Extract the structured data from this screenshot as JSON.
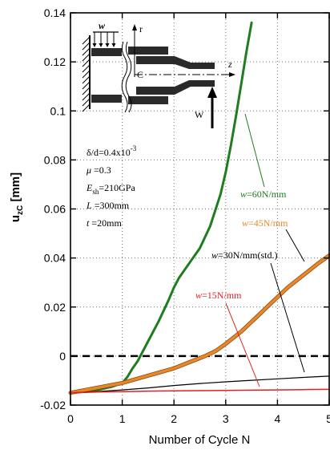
{
  "chart_data": {
    "type": "line",
    "xlabel": "Number of Cycle N",
    "ylabel_main": "u",
    "ylabel_sub": "zC",
    "ylabel_unit": " [mm]",
    "xlim": [
      0,
      5
    ],
    "ylim": [
      -0.02,
      0.14
    ],
    "x_ticks": [
      0,
      1,
      2,
      3,
      4,
      5
    ],
    "x_tick_labels": [
      "0",
      "1",
      "2",
      "3",
      "4",
      "5"
    ],
    "y_ticks": [
      -0.02,
      0,
      0.02,
      0.04,
      0.06,
      0.08,
      0.1,
      0.12,
      0.14
    ],
    "y_tick_labels": [
      "-0.02",
      "0",
      "0.02",
      "0.04",
      "0.06",
      "0.08",
      "0.1",
      "0.12",
      "0.14"
    ],
    "grid": "dotted",
    "reference_line": {
      "y": 0,
      "style": "dashed",
      "color": "#000000"
    },
    "series": [
      {
        "name": "w=60N/mm",
        "label_prefix": "w",
        "label_suffix": "=60N/mm",
        "color": "#1e7d1e",
        "width": 3,
        "x": [
          0,
          0.3,
          0.6,
          0.8,
          1.0,
          1.1,
          1.2,
          1.3,
          1.4,
          1.5,
          1.7,
          1.9,
          2.0,
          2.1,
          2.3,
          2.5,
          2.7,
          2.9,
          3.0,
          3.1,
          3.2,
          3.3,
          3.4,
          3.5
        ],
        "y": [
          -0.015,
          -0.0145,
          -0.0135,
          -0.0125,
          -0.011,
          -0.0085,
          -0.005,
          -0.002,
          0.002,
          0.006,
          0.014,
          0.023,
          0.028,
          0.032,
          0.038,
          0.044,
          0.053,
          0.066,
          0.075,
          0.086,
          0.098,
          0.111,
          0.124,
          0.136
        ]
      },
      {
        "name": "w=45N/mm",
        "label_prefix": "w",
        "label_suffix": "=45N/mm",
        "color": "#e8862a",
        "width": 3.5,
        "x": [
          0,
          0.5,
          1.0,
          1.5,
          2.0,
          2.3,
          2.6,
          2.8,
          3.0,
          3.3,
          3.6,
          3.9,
          4.2,
          4.5,
          4.8,
          5.0
        ],
        "y": [
          -0.015,
          -0.013,
          -0.011,
          -0.008,
          -0.005,
          -0.0025,
          0.0,
          0.002,
          0.005,
          0.01,
          0.016,
          0.022,
          0.028,
          0.033,
          0.038,
          0.041
        ]
      },
      {
        "name": "w=30N/mm(std.)",
        "label_prefix": "w",
        "label_suffix": "=30N/mm(std.)",
        "color": "#000000",
        "width": 1.2,
        "x": [
          0,
          0.5,
          1.0,
          1.5,
          2.0,
          2.5,
          3.0,
          3.5,
          4.0,
          4.5,
          5.0
        ],
        "y": [
          -0.015,
          -0.0145,
          -0.0138,
          -0.013,
          -0.012,
          -0.0112,
          -0.0105,
          -0.0099,
          -0.0093,
          -0.0087,
          -0.0082
        ]
      },
      {
        "name": "w=15N/mm",
        "label_prefix": "w",
        "label_suffix": "=15N/mm",
        "color": "#e02020",
        "width": 1.5,
        "x": [
          0,
          0.5,
          1.0,
          1.5,
          2.0,
          2.5,
          3.0,
          3.5,
          4.0,
          4.5,
          5.0
        ],
        "y": [
          -0.015,
          -0.0147,
          -0.0145,
          -0.0143,
          -0.0142,
          -0.0141,
          -0.014,
          -0.0139,
          -0.0138,
          -0.0137,
          -0.0136
        ]
      }
    ],
    "parameters": [
      {
        "main": "δ/d=0.4x10",
        "sup": "-3",
        "sub": "",
        "tail": ""
      },
      {
        "main": "μ",
        "sup": "",
        "sub": "",
        "tail": " =0.3"
      },
      {
        "main": "E",
        "sup": "",
        "sub": "sh",
        "tail": "=210GPa"
      },
      {
        "main": "L",
        "sup": "",
        "sub": "",
        "tail": "  =300mm"
      },
      {
        "main": "t",
        "sup": "",
        "sub": "",
        "tail": "   =20mm"
      }
    ],
    "diagram": {
      "load_label": "w",
      "axis_r": "r",
      "axis_z": "z",
      "point_label": "C",
      "force_label": "W"
    },
    "colors": {
      "grid": "#777777",
      "axis": "#000000",
      "background": "#ffffff",
      "diagram_fill": "#2a2a2a",
      "load_label": "#2020c0"
    }
  }
}
